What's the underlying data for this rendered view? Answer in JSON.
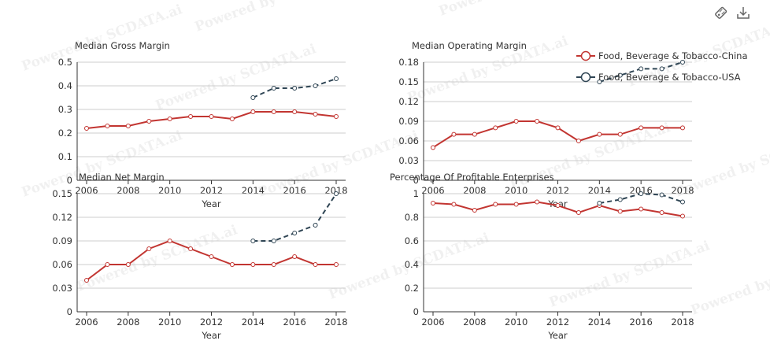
{
  "toolbar": {
    "data_view_icon": "tag-icon",
    "save_icon": "download-icon"
  },
  "legend": [
    {
      "label": "Food, Beverage & Tobacco-China",
      "color": "#c23531",
      "dashed": false
    },
    {
      "label": "Food, Beverage & Tobacco-USA",
      "color": "#2f4554",
      "dashed": true
    }
  ],
  "watermark": "Powered by SCDATA.ai",
  "chart_data": [
    {
      "type": "line",
      "title": "Median Gross Margin",
      "xlabel": "Year",
      "x": [
        2006,
        2007,
        2008,
        2009,
        2010,
        2011,
        2012,
        2013,
        2014,
        2015,
        2016,
        2017,
        2018
      ],
      "xticks": [
        "2006",
        "2008",
        "2010",
        "2012",
        "2014",
        "2016",
        "2018"
      ],
      "ylim": [
        0,
        0.5
      ],
      "yticks": [
        "0",
        "0.1",
        "0.2",
        "0.3",
        "0.4",
        "0.5"
      ],
      "series": [
        {
          "name": "Food, Beverage & Tobacco-China",
          "values": [
            0.22,
            0.23,
            0.23,
            0.25,
            0.26,
            0.27,
            0.27,
            0.26,
            0.29,
            0.29,
            0.29,
            0.28,
            0.27
          ]
        },
        {
          "name": "Food, Beverage & Tobacco-USA",
          "values": [
            null,
            null,
            null,
            null,
            null,
            null,
            null,
            null,
            0.35,
            0.39,
            0.39,
            0.4,
            0.43
          ]
        }
      ]
    },
    {
      "type": "line",
      "title": "Median Operating Margin",
      "xlabel": "Year",
      "x": [
        2006,
        2007,
        2008,
        2009,
        2010,
        2011,
        2012,
        2013,
        2014,
        2015,
        2016,
        2017,
        2018
      ],
      "xticks": [
        "2006",
        "2008",
        "2010",
        "2012",
        "2014",
        "2016",
        "2018"
      ],
      "ylim": [
        0,
        0.18
      ],
      "yticks": [
        "0",
        "0.03",
        "0.06",
        "0.09",
        "0.12",
        "0.15",
        "0.18"
      ],
      "series": [
        {
          "name": "Food, Beverage & Tobacco-China",
          "values": [
            0.05,
            0.07,
            0.07,
            0.08,
            0.09,
            0.09,
            0.08,
            0.06,
            0.07,
            0.07,
            0.08,
            0.08,
            0.08
          ]
        },
        {
          "name": "Food, Beverage & Tobacco-USA",
          "values": [
            null,
            null,
            null,
            null,
            null,
            null,
            null,
            null,
            0.15,
            0.16,
            0.17,
            0.17,
            0.18
          ]
        }
      ]
    },
    {
      "type": "line",
      "title": "Median Net Margin",
      "xlabel": "Year",
      "x": [
        2006,
        2007,
        2008,
        2009,
        2010,
        2011,
        2012,
        2013,
        2014,
        2015,
        2016,
        2017,
        2018
      ],
      "xticks": [
        "2006",
        "2008",
        "2010",
        "2012",
        "2014",
        "2016",
        "2018"
      ],
      "ylim": [
        0,
        0.15
      ],
      "yticks": [
        "0",
        "0.03",
        "0.06",
        "0.09",
        "0.12",
        "0.15"
      ],
      "series": [
        {
          "name": "Food, Beverage & Tobacco-China",
          "values": [
            0.04,
            0.06,
            0.06,
            0.08,
            0.09,
            0.08,
            0.07,
            0.06,
            0.06,
            0.06,
            0.07,
            0.06,
            0.06
          ]
        },
        {
          "name": "Food, Beverage & Tobacco-USA",
          "values": [
            null,
            null,
            null,
            null,
            null,
            null,
            null,
            null,
            0.09,
            0.09,
            0.1,
            0.11,
            0.15
          ]
        }
      ]
    },
    {
      "type": "line",
      "title": "Percentage Of Profitable Enterprises",
      "xlabel": "Year",
      "x": [
        2006,
        2007,
        2008,
        2009,
        2010,
        2011,
        2012,
        2013,
        2014,
        2015,
        2016,
        2017,
        2018
      ],
      "xticks": [
        "2006",
        "2008",
        "2010",
        "2012",
        "2014",
        "2016",
        "2018"
      ],
      "ylim": [
        0,
        1
      ],
      "yticks": [
        "0",
        "0.2",
        "0.4",
        "0.6",
        "0.8",
        "1"
      ],
      "series": [
        {
          "name": "Food, Beverage & Tobacco-China",
          "values": [
            0.92,
            0.91,
            0.86,
            0.91,
            0.91,
            0.93,
            0.9,
            0.84,
            0.9,
            0.85,
            0.87,
            0.84,
            0.81
          ]
        },
        {
          "name": "Food, Beverage & Tobacco-USA",
          "values": [
            null,
            null,
            null,
            null,
            null,
            null,
            null,
            null,
            0.92,
            0.95,
            1.0,
            0.99,
            0.93
          ]
        }
      ]
    }
  ]
}
